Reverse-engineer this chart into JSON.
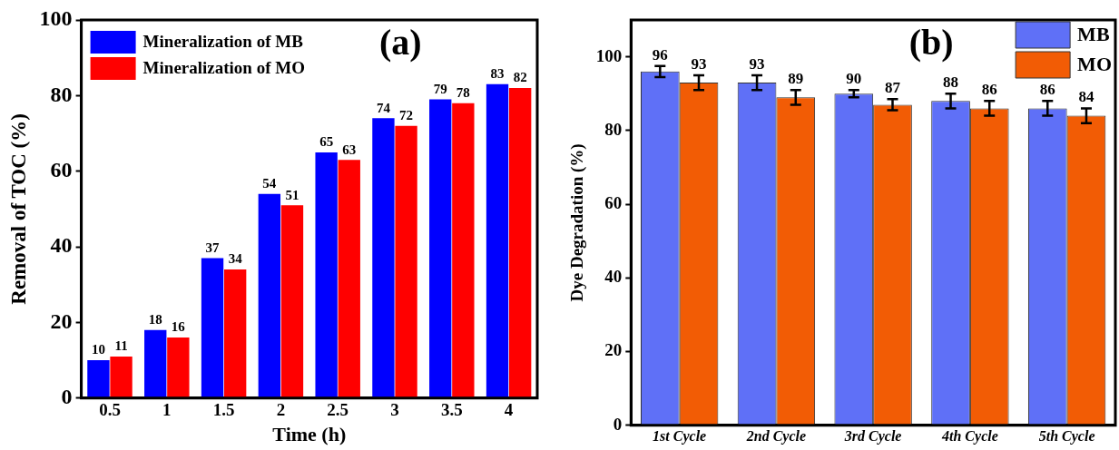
{
  "chart_data": [
    {
      "type": "bar",
      "xlabel": "Time (h)",
      "ylabel": "Removal of TOC (%)",
      "annotations": [
        "(a)"
      ],
      "categories": [
        "0.5",
        "1",
        "1.5",
        "2",
        "2.5",
        "3",
        "3.5",
        "4"
      ],
      "series": [
        {
          "name": "Mineralization of MB",
          "color": "#0000ff",
          "values": [
            10,
            18,
            37,
            54,
            65,
            74,
            79,
            83
          ]
        },
        {
          "name": "Mineralization of MO",
          "color": "#ff0000",
          "values": [
            11,
            16,
            34,
            51,
            63,
            72,
            78,
            82
          ]
        }
      ],
      "ylim": [
        0,
        100
      ],
      "yticks": [
        0,
        20,
        40,
        60,
        80,
        100
      ],
      "data_labels": true,
      "legend": "top left"
    },
    {
      "type": "bar",
      "ylabel": "Dye Degradation (%)",
      "annotations": [
        "(b)"
      ],
      "categories": [
        "1st Cycle",
        "2nd Cycle",
        "3rd Cycle",
        "4th Cycle",
        "5th Cycle"
      ],
      "series": [
        {
          "name": "MB",
          "color": "#5f70f7",
          "values": [
            96,
            93,
            90,
            88,
            86
          ],
          "errors": [
            1.5,
            2,
            1,
            2,
            2
          ]
        },
        {
          "name": "MO",
          "color": "#f25c05",
          "values": [
            93,
            89,
            87,
            86,
            84
          ],
          "errors": [
            2,
            2,
            1.5,
            2,
            2
          ]
        }
      ],
      "ylim": [
        0,
        110
      ],
      "yticks": [
        0,
        20,
        40,
        60,
        80,
        100
      ],
      "data_labels": true,
      "legend": "top right"
    }
  ]
}
